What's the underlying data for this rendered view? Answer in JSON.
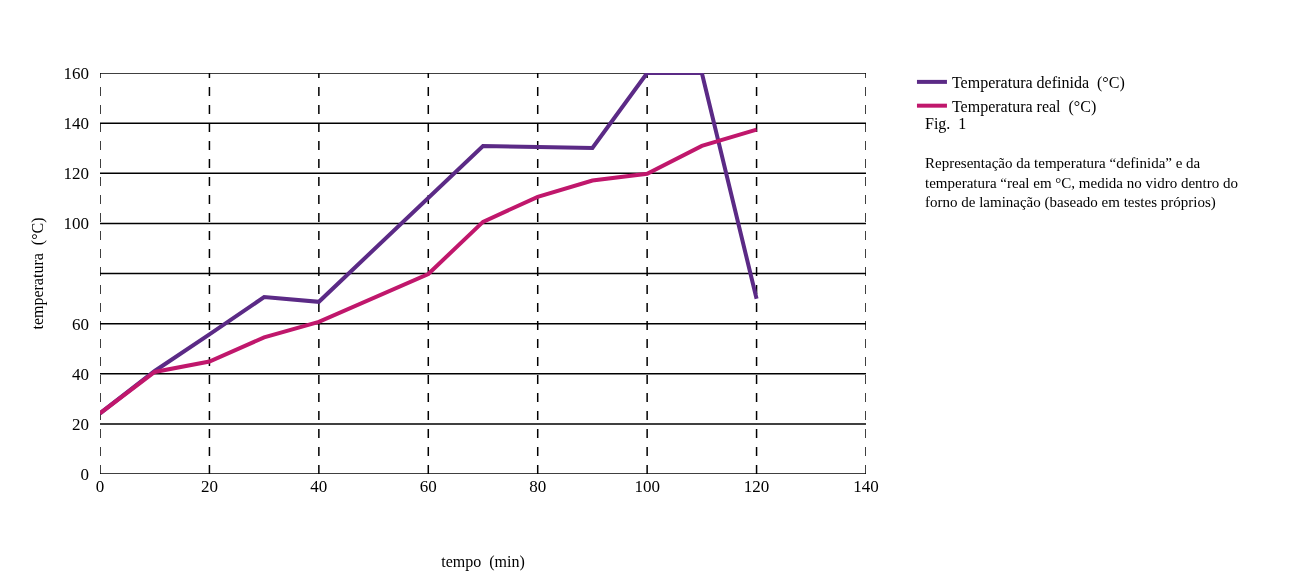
{
  "chart_data": {
    "type": "line",
    "xlabel": "tempo  (min)",
    "ylabel": "temperatura  (°C)",
    "x": [
      0,
      10,
      20,
      30,
      40,
      70,
      80,
      90,
      100,
      110,
      120
    ],
    "series": [
      {
        "name": "Temperatura definida  (°C)",
        "color": "#5b2a86",
        "values": [
          24.2,
          41.1,
          55.7,
          70.6,
          68.7,
          130.9,
          130.5,
          130.1,
          160,
          160,
          69.9
        ]
      },
      {
        "name": "Temperatura real  (°C)",
        "color": "#c0176c",
        "x": [
          0,
          10,
          20,
          30,
          40,
          60,
          70,
          80,
          90,
          100,
          110,
          120
        ],
        "values": [
          24.2,
          40.7,
          44.9,
          54.5,
          60.7,
          79.8,
          100.6,
          110.6,
          117.1,
          119.8,
          130.9,
          137.4
        ]
      }
    ],
    "xlim": [
      0,
      140
    ],
    "xticks": [
      0,
      20,
      40,
      60,
      80,
      100,
      120,
      140
    ],
    "ylim": [
      0,
      160
    ],
    "yticks": [
      0,
      20,
      40,
      60,
      {
        "value": 80,
        "label": null
      },
      100,
      120,
      140,
      160
    ],
    "grid": true,
    "legend": "top right",
    "marker": "none",
    "line_style": "solid",
    "annotations": [
      "Fig.  1",
      "Representação da temperatura “definida” e da temperatura “real em °C, medida no vidro dentro do forno de laminação (baseado em testes próprios)"
    ]
  }
}
